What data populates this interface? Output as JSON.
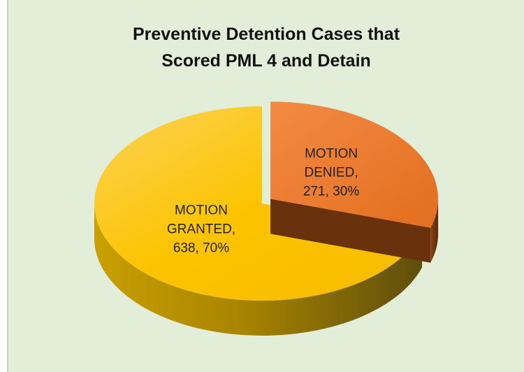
{
  "chart_data": {
    "type": "pie",
    "title": "Preventive Detention Cases that Scored PML 4 and Detain",
    "values": [
      638,
      271
    ],
    "value_labels": [
      "MOTION GRANTED, 638, 70%",
      "MOTION DENIED, 271, 30%"
    ],
    "colors": [
      "#fcc200",
      "#ee7a2c"
    ]
  }
}
